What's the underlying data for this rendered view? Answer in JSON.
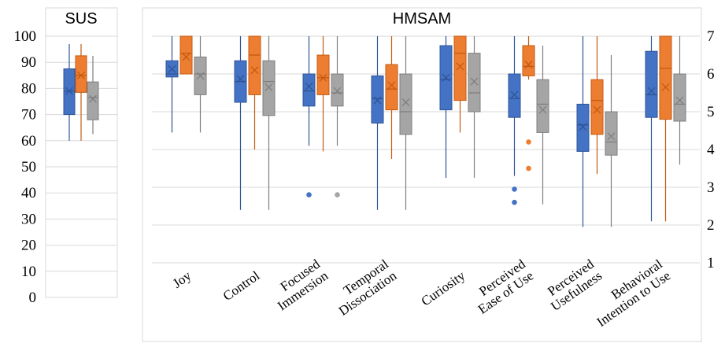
{
  "colors": {
    "blue": "#4472c4",
    "orange": "#ed7d31",
    "gray": "#a5a5a5",
    "grid": "#d9d9d9"
  },
  "chart_data": [
    {
      "type": "box",
      "title": "SUS",
      "ylim": [
        0,
        100
      ],
      "yticks": [
        0,
        10,
        20,
        30,
        40,
        50,
        60,
        70,
        80,
        90,
        100
      ],
      "grid": true,
      "categories": [
        ""
      ],
      "series": [
        {
          "color": "#4472c4",
          "boxes": [
            {
              "min": 60,
              "q1": 70,
              "median": 79,
              "mean": 79,
              "q3": 87.5,
              "max": 97,
              "outliers": []
            }
          ]
        },
        {
          "color": "#ed7d31",
          "boxes": [
            {
              "min": 60,
              "q1": 78.5,
              "median": 85,
              "mean": 85,
              "q3": 92.5,
              "max": 97,
              "outliers": []
            }
          ]
        },
        {
          "color": "#a5a5a5",
          "boxes": [
            {
              "min": 62.5,
              "q1": 68,
              "median": 76.5,
              "mean": 76,
              "q3": 82.5,
              "max": 92.5,
              "outliers": []
            }
          ]
        }
      ]
    },
    {
      "type": "box",
      "title": "HMSAM",
      "ylim": [
        1,
        7
      ],
      "yticks": [
        1,
        2,
        3,
        4,
        5,
        6,
        7
      ],
      "grid": true,
      "categories": [
        "Joy",
        "Control",
        "Focused Immersion",
        "Temporal Dissociation",
        "Curiosity",
        "Perceived Ease of Use",
        "Perceived Usefulness",
        "Behavioral Intention to Use"
      ],
      "series": [
        {
          "color": "#4472c4",
          "boxes": [
            {
              "min": 4.45,
              "q1": 5.92,
              "median": 6.0,
              "mean": 6.13,
              "q3": 6.35,
              "max": 7,
              "outliers": []
            },
            {
              "min": 2.4,
              "q1": 5.25,
              "median": 5.8,
              "mean": 5.87,
              "q3": 6.35,
              "max": 7,
              "outliers": []
            },
            {
              "min": 4.1,
              "q1": 5.15,
              "median": 5.55,
              "mean": 5.67,
              "q3": 6.0,
              "max": 7,
              "outliers": [
                2.8
              ]
            },
            {
              "min": 2.4,
              "q1": 4.7,
              "median": 5.35,
              "mean": 5.3,
              "q3": 5.95,
              "max": 7,
              "outliers": []
            },
            {
              "min": 3.25,
              "q1": 5.05,
              "median": 5.85,
              "mean": 5.9,
              "q3": 6.75,
              "max": 7,
              "outliers": []
            },
            {
              "min": 3.3,
              "q1": 4.85,
              "median": 5.35,
              "mean": 5.45,
              "q3": 6.0,
              "max": 7,
              "outliers": [
                2.95,
                2.6
              ]
            },
            {
              "min": 1.95,
              "q1": 3.95,
              "median": 4.65,
              "mean": 4.6,
              "q3": 5.2,
              "max": 7,
              "outliers": []
            },
            {
              "min": 2.1,
              "q1": 4.85,
              "median": 5.45,
              "mean": 5.55,
              "q3": 6.6,
              "max": 7,
              "outliers": []
            }
          ]
        },
        {
          "color": "#ed7d31",
          "boxes": [
            {
              "min": 6.0,
              "q1": 6.0,
              "median": 6.55,
              "mean": 6.45,
              "q3": 7,
              "max": 7,
              "outliers": []
            },
            {
              "min": 4.0,
              "q1": 5.45,
              "median": 6.5,
              "mean": 6.1,
              "q3": 7,
              "max": 7,
              "outliers": []
            },
            {
              "min": 3.95,
              "q1": 5.45,
              "median": 5.9,
              "mean": 5.9,
              "q3": 6.5,
              "max": 7,
              "outliers": []
            },
            {
              "min": 3.75,
              "q1": 5.05,
              "median": 5.6,
              "mean": 5.7,
              "q3": 6.25,
              "max": 7,
              "outliers": []
            },
            {
              "min": 4.45,
              "q1": 5.3,
              "median": 6.55,
              "mean": 6.2,
              "q3": 7,
              "max": 7,
              "outliers": []
            },
            {
              "min": 5.85,
              "q1": 5.95,
              "median": 6.2,
              "mean": 6.25,
              "q3": 6.75,
              "max": 7,
              "outliers": [
                4.2,
                3.5
              ]
            },
            {
              "min": 3.35,
              "q1": 4.4,
              "median": 5.3,
              "mean": 5.05,
              "q3": 5.85,
              "max": 7,
              "outliers": []
            },
            {
              "min": 2.1,
              "q1": 4.8,
              "median": 6.15,
              "mean": 5.65,
              "q3": 7,
              "max": 7,
              "outliers": []
            }
          ]
        },
        {
          "color": "#a5a5a5",
          "boxes": [
            {
              "min": 4.45,
              "q1": 5.45,
              "median": 6.0,
              "mean": 5.95,
              "q3": 6.45,
              "max": 7,
              "outliers": []
            },
            {
              "min": 2.4,
              "q1": 4.9,
              "median": 5.8,
              "mean": 5.65,
              "q3": 6.35,
              "max": 7,
              "outliers": []
            },
            {
              "min": 4.1,
              "q1": 5.15,
              "median": 5.5,
              "mean": 5.55,
              "q3": 6.0,
              "max": 7,
              "outliers": [
                2.8
              ]
            },
            {
              "min": 2.4,
              "q1": 4.4,
              "median": 5.0,
              "mean": 5.25,
              "q3": 6.0,
              "max": 7,
              "outliers": []
            },
            {
              "min": 3.25,
              "q1": 5.0,
              "median": 5.5,
              "mean": 5.8,
              "q3": 6.55,
              "max": 7,
              "outliers": []
            },
            {
              "min": 2.55,
              "q1": 4.45,
              "median": 5.2,
              "mean": 5.05,
              "q3": 5.85,
              "max": 6.75,
              "outliers": []
            },
            {
              "min": 1.95,
              "q1": 3.85,
              "median": 4.2,
              "mean": 4.35,
              "q3": 5.0,
              "max": 6.5,
              "outliers": []
            },
            {
              "min": 3.6,
              "q1": 4.75,
              "median": 5.2,
              "mean": 5.3,
              "q3": 6.0,
              "max": 7,
              "outliers": []
            }
          ]
        }
      ]
    }
  ]
}
